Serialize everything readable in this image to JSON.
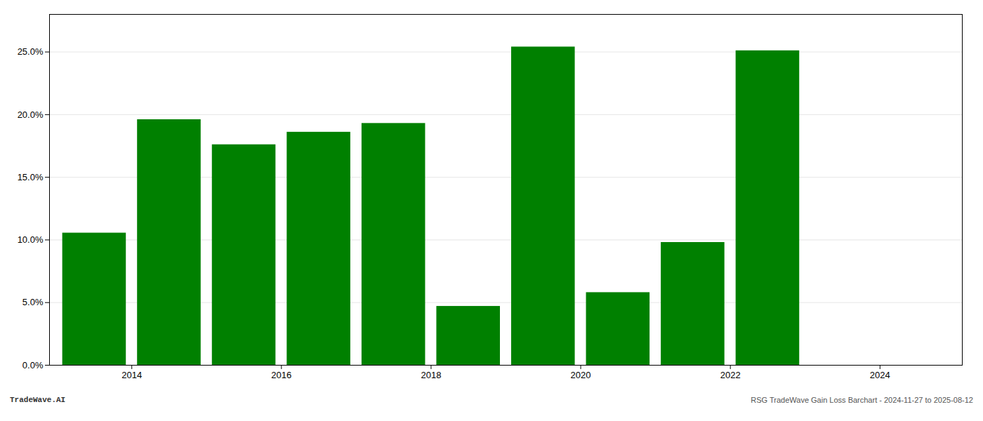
{
  "chart_data": {
    "type": "bar",
    "x": [
      2014,
      2015,
      2016,
      2017,
      2018,
      2019,
      2020,
      2021,
      2022,
      2023
    ],
    "values": [
      0.1055,
      0.196,
      0.176,
      0.186,
      0.193,
      0.047,
      0.254,
      0.058,
      0.098,
      0.251
    ],
    "color": "#008000",
    "xlim": [
      2013.4,
      2025.6
    ],
    "xticks": [
      {
        "value": 2014.5,
        "label": "2014"
      },
      {
        "value": 2016.5,
        "label": "2016"
      },
      {
        "value": 2018.5,
        "label": "2018"
      },
      {
        "value": 2020.5,
        "label": "2020"
      },
      {
        "value": 2022.5,
        "label": "2022"
      },
      {
        "value": 2024.5,
        "label": "2024"
      }
    ],
    "ylim": [
      0,
      0.28
    ],
    "yticks": [
      {
        "value": 0.0,
        "label": "0.0%"
      },
      {
        "value": 0.05,
        "label": "5.0%"
      },
      {
        "value": 0.1,
        "label": "10.0%"
      },
      {
        "value": 0.15,
        "label": "15.0%"
      },
      {
        "value": 0.2,
        "label": "20.0%"
      },
      {
        "value": 0.25,
        "label": "25.0%"
      }
    ],
    "grid": true,
    "annotations": [
      "TradeWave.AI",
      "RSG TradeWave Gain Loss Barchart - 2024-11-27 to 2025-08-12"
    ]
  }
}
